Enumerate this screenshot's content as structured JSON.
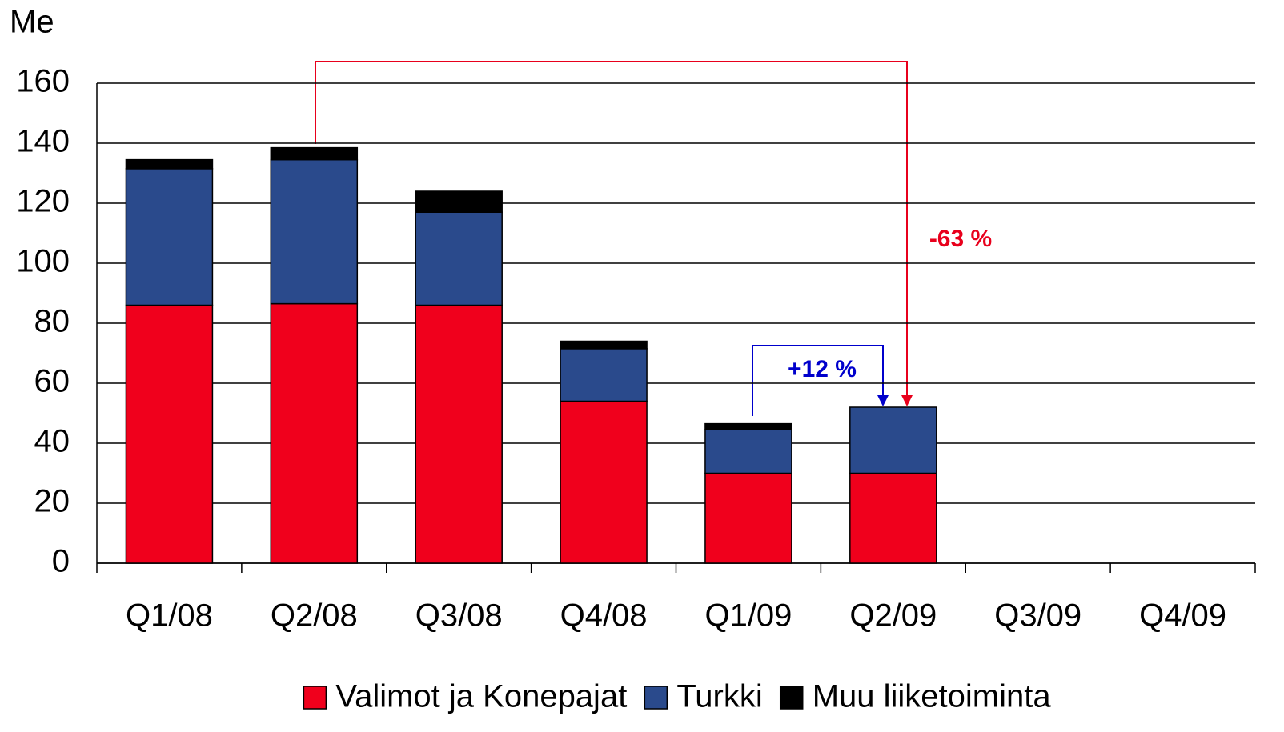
{
  "chart_data": {
    "type": "bar",
    "stacked": true,
    "y_label": "Me",
    "categories": [
      "Q1/08",
      "Q2/08",
      "Q3/08",
      "Q4/08",
      "Q1/09",
      "Q2/09",
      "Q3/09",
      "Q4/09"
    ],
    "series": [
      {
        "name": "Valimot ja Konepajat",
        "color": "#f0001c",
        "values": [
          86,
          86.5,
          86,
          54,
          30,
          30,
          null,
          null
        ]
      },
      {
        "name": "Turkki",
        "color": "#2a4a8c",
        "values": [
          45.5,
          48,
          31,
          17.5,
          14.5,
          22,
          null,
          null
        ]
      },
      {
        "name": "Muu liiketoiminta",
        "color": "#000000",
        "values": [
          3,
          4,
          7,
          2.5,
          2,
          0,
          null,
          null
        ]
      }
    ],
    "ylim": [
      0,
      160
    ],
    "yticks": [
      0,
      20,
      40,
      60,
      80,
      100,
      120,
      140,
      160
    ],
    "grid": true,
    "legend": "bottom",
    "annotations": [
      "-63 %",
      "+12 %"
    ]
  }
}
